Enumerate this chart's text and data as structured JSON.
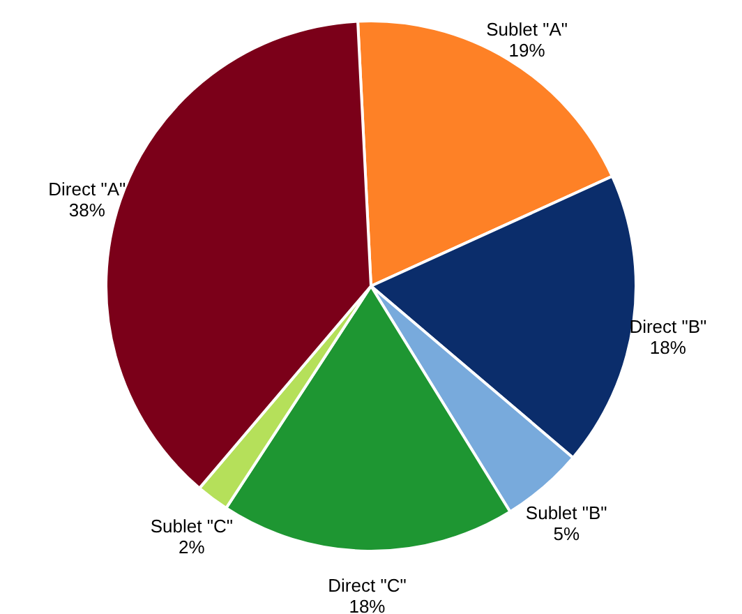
{
  "chart_data": {
    "type": "pie",
    "categories": [
      "Sublet \"A\"",
      "Direct \"B\"",
      "Sublet \"B\"",
      "Direct \"C\"",
      "Sublet \"C\"",
      "Direct \"A\""
    ],
    "values": [
      19,
      18,
      5,
      18,
      2,
      38
    ],
    "value_labels": [
      "19%",
      "18%",
      "5%",
      "18%",
      "2%",
      "38%"
    ],
    "colors": [
      "#fe8126",
      "#0b2d6b",
      "#78aadc",
      "#1e9632",
      "#b5e05a",
      "#7b0019"
    ]
  }
}
